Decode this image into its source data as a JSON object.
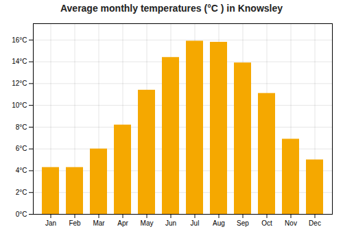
{
  "chart_data": {
    "type": "bar",
    "title": "Average monthly temperatures (°C ) in Knowsley",
    "categories": [
      "Jan",
      "Feb",
      "Mar",
      "Apr",
      "May",
      "Jun",
      "Jul",
      "Aug",
      "Sep",
      "Oct",
      "Nov",
      "Dec"
    ],
    "values": [
      4.3,
      4.3,
      6.0,
      8.2,
      11.4,
      14.4,
      15.9,
      15.8,
      13.9,
      11.1,
      6.9,
      5.0
    ],
    "color": "#F5A800",
    "ylim": [
      0,
      17.5
    ],
    "yticks": [
      {
        "value": 0,
        "label": "0°C"
      },
      {
        "value": 2,
        "label": "2°C"
      },
      {
        "value": 4,
        "label": "4°C"
      },
      {
        "value": 6,
        "label": "6°C"
      },
      {
        "value": 8,
        "label": "8°C"
      },
      {
        "value": 10,
        "label": "10°C"
      },
      {
        "value": 12,
        "label": "12°C"
      },
      {
        "value": 14,
        "label": "14°C"
      },
      {
        "value": 16,
        "label": "16°C"
      }
    ],
    "grid": true
  }
}
